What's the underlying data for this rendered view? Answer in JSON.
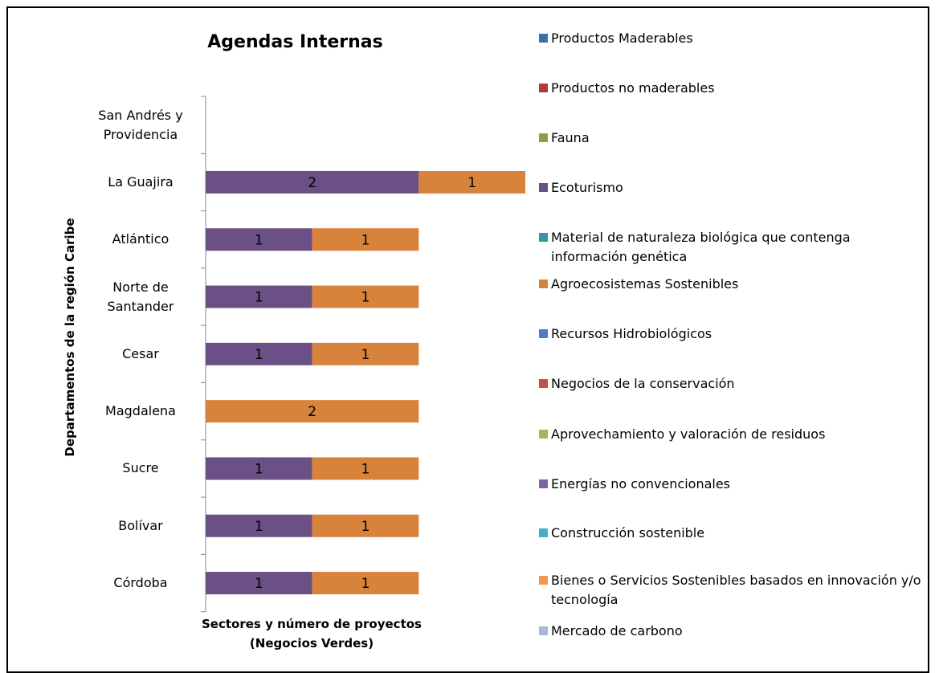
{
  "chart_data": {
    "type": "stacked-bar-horizontal",
    "title": "Agendas Internas",
    "y_axis_label": "Departamentos de la región  Caribe",
    "x_axis_label": "Sectores y  número de  proyectos (Negocios Verdes)",
    "categories": [
      "San Andrés y Providencia",
      "La Guajira",
      "Atlántico",
      "Norte de Santander",
      "Cesar",
      "Magdalena",
      "Sucre",
      "Bolívar",
      "Córdoba"
    ],
    "xlim": [
      0,
      3
    ],
    "series": [
      {
        "name": "Productos Maderables",
        "color": "#3f6fa8",
        "values": [
          null,
          null,
          null,
          null,
          null,
          null,
          null,
          null,
          null
        ]
      },
      {
        "name": "Productos no maderables",
        "color": "#b03a36",
        "values": [
          null,
          null,
          null,
          null,
          null,
          null,
          null,
          null,
          null
        ]
      },
      {
        "name": "Fauna",
        "color": "#86a444",
        "values": [
          null,
          null,
          null,
          null,
          null,
          null,
          null,
          null,
          null
        ]
      },
      {
        "name": "Ecoturismo",
        "color": "#6a5084",
        "values": [
          null,
          2,
          1,
          1,
          1,
          null,
          1,
          1,
          1
        ]
      },
      {
        "name": "Material de naturaleza biológica que contenga información genética",
        "color": "#35979f",
        "values": [
          null,
          null,
          null,
          null,
          null,
          null,
          null,
          null,
          null
        ]
      },
      {
        "name": "Agroecosistemas Sostenibles",
        "color": "#d8833c",
        "values": [
          null,
          1,
          1,
          1,
          1,
          2,
          1,
          1,
          1
        ]
      },
      {
        "name": "Recursos Hidrobiológicos",
        "color": "#4a7fc1",
        "values": [
          null,
          null,
          null,
          null,
          null,
          null,
          null,
          null,
          null
        ]
      },
      {
        "name": "Negocios de la conservación",
        "color": "#c0504d",
        "values": [
          null,
          null,
          null,
          null,
          null,
          null,
          null,
          null,
          null
        ]
      },
      {
        "name": "Aprovechamiento y valoración de residuos",
        "color": "#9bbb59",
        "values": [
          null,
          null,
          null,
          null,
          null,
          null,
          null,
          null,
          null
        ]
      },
      {
        "name": "Energías no convencionales",
        "color": "#8064a2",
        "values": [
          null,
          null,
          null,
          null,
          null,
          null,
          null,
          null,
          null
        ]
      },
      {
        "name": "Construcción sostenible",
        "color": "#4bacc6",
        "values": [
          null,
          null,
          null,
          null,
          null,
          null,
          null,
          null,
          null
        ]
      },
      {
        "name": "Bienes o Servicios Sostenibles basados en innovación y/o tecnología",
        "color": "#f79646",
        "values": [
          null,
          null,
          null,
          null,
          null,
          null,
          null,
          null,
          null
        ]
      },
      {
        "name": "Mercado de carbono",
        "color": "#a6b8d8",
        "values": [
          null,
          null,
          null,
          null,
          null,
          null,
          null,
          null,
          null
        ]
      }
    ]
  }
}
